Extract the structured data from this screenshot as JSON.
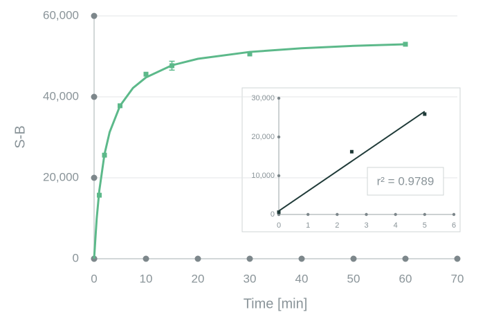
{
  "chart_data": [
    {
      "type": "scatter",
      "x_label": "Time [min]",
      "y_label": "S-B",
      "xlim": [
        0,
        70
      ],
      "xticks": [
        0,
        10,
        20,
        30,
        40,
        50,
        60,
        70
      ],
      "ylim": [
        0,
        60000
      ],
      "yticks": [
        0,
        {
          "value": 20000,
          "label": "20,000"
        },
        {
          "value": 40000,
          "label": "40,000"
        },
        {
          "value": 60000,
          "label": "60,000"
        }
      ],
      "grid": true,
      "series": [
        {
          "type": "scatter",
          "color": "#5cb98a",
          "x": [
            1,
            2,
            5,
            10,
            15,
            30,
            60
          ],
          "values": [
            15700,
            25600,
            37800,
            45600,
            47700,
            50600,
            53000
          ],
          "errors": [
            null,
            null,
            null,
            null,
            1100,
            null,
            null
          ]
        },
        {
          "type": "line",
          "color": "#5cb98a",
          "x": [
            0,
            0.5,
            1,
            2,
            3,
            5,
            7.5,
            10,
            15,
            20,
            30,
            40,
            50,
            60
          ],
          "values": [
            0,
            9900,
            16800,
            25800,
            31300,
            37800,
            42200,
            44800,
            47800,
            49400,
            51100,
            52000,
            52600,
            53000
          ]
        }
      ]
    },
    {
      "type": "scatter",
      "annotation": "r² = 0.9789",
      "xlim": [
        0,
        6
      ],
      "xticks": [
        0,
        1,
        2,
        3,
        4,
        5,
        6
      ],
      "ylim": [
        0,
        30000
      ],
      "yticks": [
        0,
        {
          "value": 10000,
          "label": "10,000"
        },
        {
          "value": 20000,
          "label": "20,000"
        },
        {
          "value": 30000,
          "label": "30,000"
        }
      ],
      "grid": false,
      "series": [
        {
          "type": "scatter",
          "color": "#1f3a38",
          "x": [
            0,
            2.5,
            5
          ],
          "values": [
            600,
            16200,
            25900
          ]
        },
        {
          "type": "line",
          "color": "#1f3a38",
          "x": [
            0,
            5
          ],
          "values": [
            900,
            26600
          ]
        }
      ]
    }
  ]
}
